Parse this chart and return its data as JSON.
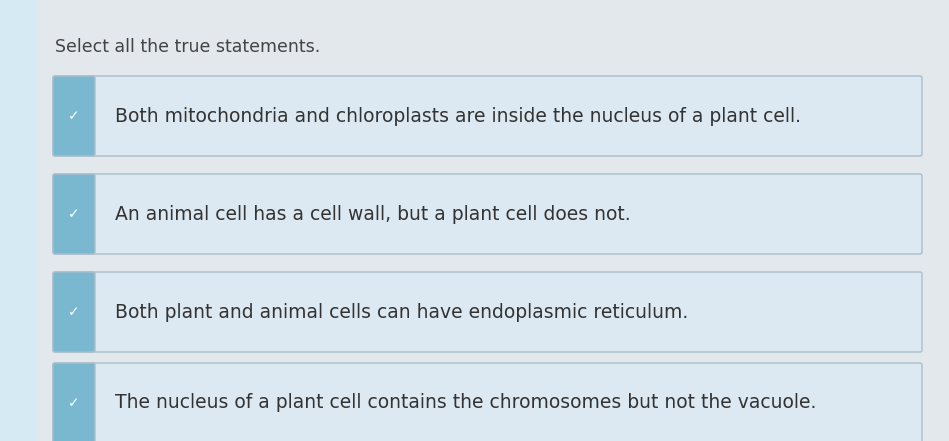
{
  "title": "Select all the true statements.",
  "title_fontsize": 12.5,
  "title_color": "#444444",
  "background_color": "#d6eaf4",
  "page_bg_color": "#e8e8e8",
  "box_bg_color": "#dce8f0",
  "box_border_color": "#aabfcc",
  "check_tab_color": "#7ab8d0",
  "check_color": "#5a8a9a",
  "text_color": "#333333",
  "options": [
    "Both mitochondria and chloroplasts are inside the nucleus of a plant cell.",
    "An animal cell has a cell wall, but a plant cell does not.",
    "Both plant and animal cells can have endoplasmic reticulum.",
    "The nucleus of a plant cell contains the chromosomes but not the vacuole."
  ],
  "text_fontsize": 13.5,
  "check_fontsize": 10
}
